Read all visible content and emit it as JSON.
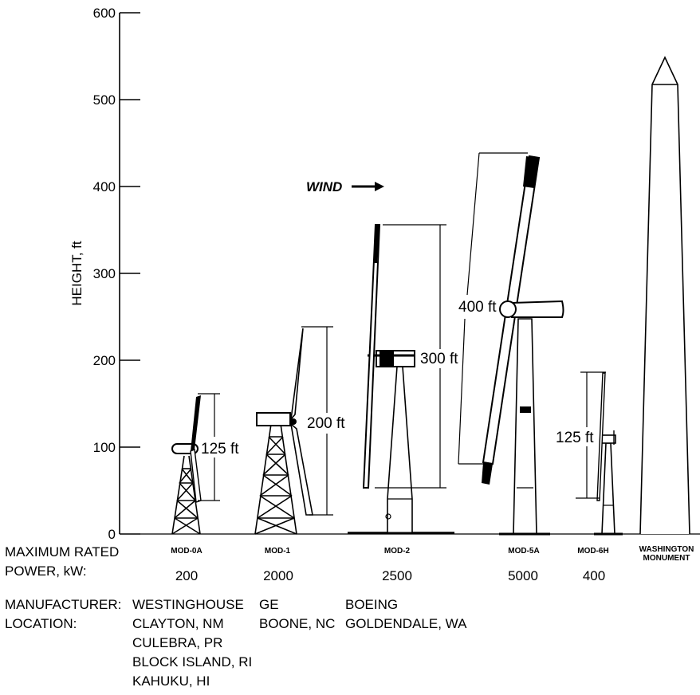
{
  "axis": {
    "title": "HEIGHT, ft",
    "ticks": [
      "600",
      "500",
      "400",
      "300",
      "200",
      "100",
      "0"
    ]
  },
  "wind_label": "WIND",
  "models": [
    {
      "name": "MOD-0A",
      "power": "200",
      "rotor_diameter": "125 ft"
    },
    {
      "name": "MOD-1",
      "power": "2000",
      "rotor_diameter": "200 ft"
    },
    {
      "name": "MOD-2",
      "power": "2500",
      "rotor_diameter": "300 ft"
    },
    {
      "name": "MOD-5A",
      "power": "5000",
      "rotor_diameter": "400 ft"
    },
    {
      "name": "MOD-6H",
      "power": "400",
      "rotor_diameter": "125 ft"
    }
  ],
  "monument": {
    "name_line1": "WASHINGTON",
    "name_line2": "MONUMENT"
  },
  "labels": {
    "power_line1": "MAXIMUM RATED",
    "power_line2": "POWER, kW:",
    "manufacturer": "MANUFACTURER:",
    "location": "LOCATION:"
  },
  "manufacturers": [
    "WESTINGHOUSE",
    "GE",
    "BOEING"
  ],
  "locations": {
    "westinghouse": [
      "CLAYTON, NM",
      "CULEBRA, PR",
      "BLOCK ISLAND, RI",
      "KAHUKU, HI"
    ],
    "ge": "BOONE, NC",
    "boeing": "GOLDENDALE, WA"
  }
}
